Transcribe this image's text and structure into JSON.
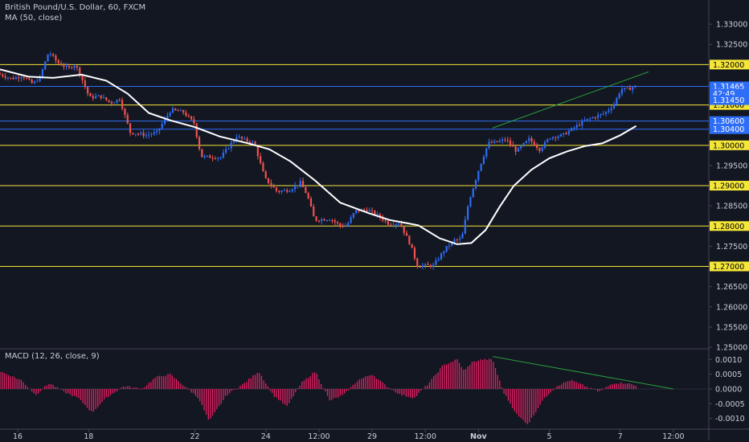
{
  "header": {
    "title": "British Pound/U.S. Dollar, 60, FXCM",
    "ma_label": "MA (50, close)"
  },
  "macd_label": "MACD (12, 26, close, 9)",
  "chart_data": [
    {
      "type": "candlestick",
      "title": "British Pound/U.S. Dollar, 60, FXCM",
      "ylim": [
        1.25,
        1.335
      ],
      "y_ticks": [
        "1.33000",
        "1.32500",
        "1.32000",
        "1.31500",
        "1.31000",
        "1.30500",
        "1.30000",
        "1.29500",
        "1.29000",
        "1.28500",
        "1.28000",
        "1.27500",
        "1.27000",
        "1.26500",
        "1.26000",
        "1.25500",
        "1.25000"
      ],
      "x_ticks": [
        {
          "label": "16",
          "t": 0.5
        },
        {
          "label": "18",
          "t": 2.5
        },
        {
          "label": "22",
          "t": 5.5
        },
        {
          "label": "24",
          "t": 7.5
        },
        {
          "label": "12:00",
          "t": 9.0
        },
        {
          "label": "29",
          "t": 10.5
        },
        {
          "label": "12:00",
          "t": 12.0
        },
        {
          "label": "Nov",
          "t": 13.5
        },
        {
          "label": "5",
          "t": 15.5
        },
        {
          "label": "7",
          "t": 17.5
        },
        {
          "label": "12:00",
          "t": 19.0
        }
      ],
      "price_path": [
        [
          0,
          1.3178
        ],
        [
          0.4,
          1.3165
        ],
        [
          0.7,
          1.3172
        ],
        [
          1.0,
          1.3152
        ],
        [
          1.2,
          1.3168
        ],
        [
          1.45,
          1.3232
        ],
        [
          1.7,
          1.3205
        ],
        [
          2.0,
          1.319
        ],
        [
          2.2,
          1.32
        ],
        [
          2.35,
          1.3172
        ],
        [
          2.6,
          1.3118
        ],
        [
          2.9,
          1.3122
        ],
        [
          3.2,
          1.3105
        ],
        [
          3.45,
          1.3115
        ],
        [
          3.75,
          1.3032
        ],
        [
          4.2,
          1.3025
        ],
        [
          4.5,
          1.3032
        ],
        [
          4.9,
          1.3088
        ],
        [
          5.25,
          1.3082
        ],
        [
          5.55,
          1.3055
        ],
        [
          5.75,
          1.2972
        ],
        [
          6.3,
          1.297
        ],
        [
          6.75,
          1.3022
        ],
        [
          7.0,
          1.3012
        ],
        [
          7.25,
          1.3005
        ],
        [
          7.55,
          1.2918
        ],
        [
          7.9,
          1.2885
        ],
        [
          8.25,
          1.289
        ],
        [
          8.55,
          1.2908
        ],
        [
          8.75,
          1.2875
        ],
        [
          8.95,
          1.2815
        ],
        [
          9.4,
          1.2818
        ],
        [
          9.65,
          1.2802
        ],
        [
          9.85,
          1.28
        ],
        [
          10.1,
          1.2838
        ],
        [
          10.45,
          1.284
        ],
        [
          10.75,
          1.2825
        ],
        [
          11.05,
          1.2805
        ],
        [
          11.35,
          1.2808
        ],
        [
          11.65,
          1.2755
        ],
        [
          11.85,
          1.2702
        ],
        [
          12.3,
          1.2702
        ],
        [
          12.65,
          1.2745
        ],
        [
          12.9,
          1.2765
        ],
        [
          13.1,
          1.2768
        ],
        [
          13.3,
          1.286
        ],
        [
          13.6,
          1.2945
        ],
        [
          13.85,
          1.3005
        ],
        [
          14.1,
          1.3008
        ],
        [
          14.35,
          1.3015
        ],
        [
          14.65,
          1.2985
        ],
        [
          15.0,
          1.3015
        ],
        [
          15.3,
          1.299
        ],
        [
          15.6,
          1.302
        ],
        [
          15.95,
          1.3025
        ],
        [
          16.3,
          1.3045
        ],
        [
          16.6,
          1.3062
        ],
        [
          16.9,
          1.3072
        ],
        [
          17.15,
          1.308
        ],
        [
          17.4,
          1.3102
        ],
        [
          17.6,
          1.314
        ],
        [
          17.8,
          1.3138
        ],
        [
          17.95,
          1.3146
        ]
      ],
      "ma_50": [
        [
          0,
          1.3188
        ],
        [
          0.8,
          1.317
        ],
        [
          1.5,
          1.3167
        ],
        [
          2.3,
          1.3175
        ],
        [
          3.0,
          1.316
        ],
        [
          3.6,
          1.3128
        ],
        [
          4.2,
          1.308
        ],
        [
          4.8,
          1.3062
        ],
        [
          5.5,
          1.3045
        ],
        [
          6.2,
          1.3022
        ],
        [
          7.0,
          1.3005
        ],
        [
          7.6,
          1.299
        ],
        [
          8.2,
          1.296
        ],
        [
          8.9,
          1.2912
        ],
        [
          9.6,
          1.2858
        ],
        [
          10.4,
          1.2832
        ],
        [
          11.0,
          1.2815
        ],
        [
          11.8,
          1.2802
        ],
        [
          12.4,
          1.277
        ],
        [
          12.9,
          1.2755
        ],
        [
          13.3,
          1.2758
        ],
        [
          13.7,
          1.279
        ],
        [
          14.1,
          1.2848
        ],
        [
          14.5,
          1.29
        ],
        [
          15.0,
          1.294
        ],
        [
          15.5,
          1.2968
        ],
        [
          16.0,
          1.2985
        ],
        [
          16.5,
          1.2998
        ],
        [
          17.0,
          1.3005
        ],
        [
          17.5,
          1.3025
        ],
        [
          17.95,
          1.3048
        ]
      ],
      "horizontal_levels": [
        {
          "price": 1.32,
          "label": "1.32000",
          "color": "#f5e63a"
        },
        {
          "price": 1.3146,
          "label": "1.31465",
          "color": "#2e6df6"
        },
        {
          "price": 1.31,
          "label": "1.31000",
          "color": "#f5e63a"
        },
        {
          "price": 1.306,
          "label": "1.30600",
          "color": "#2e6df6"
        },
        {
          "price": 1.304,
          "label": "1.30400",
          "color": "#2e6df6"
        },
        {
          "price": 1.3,
          "label": "1.30000",
          "color": "#f5e63a"
        },
        {
          "price": 1.29,
          "label": "1.29000",
          "color": "#f5e63a"
        },
        {
          "price": 1.28,
          "label": "1.28000",
          "color": "#f5e63a"
        },
        {
          "price": 1.27,
          "label": "1.27000",
          "color": "#f5e63a"
        }
      ],
      "price_badges": [
        {
          "label": "42:49",
          "price": 1.3128,
          "color": "#2e6df6"
        },
        {
          "label": "1.31450",
          "price": 1.3112,
          "color": "#2e6df6"
        }
      ],
      "trendline": {
        "from": [
          13.9,
          1.3043
        ],
        "to": [
          18.3,
          1.3182
        ],
        "color": "#2a9d3a"
      },
      "colors": {
        "up": "#2e6df6",
        "down": "#ef5350",
        "ma": "#ffffff",
        "grid": "#2a2e39",
        "text": "#c8ccd6"
      }
    },
    {
      "type": "bar",
      "title": "MACD (12, 26, close, 9)",
      "ylim": [
        -0.0012,
        0.0012
      ],
      "y_ticks": [
        "0.0010",
        "0.0005",
        "0.0000",
        "-0.0005",
        "-0.0010"
      ],
      "histogram_profile": [
        [
          0,
          0.0006
        ],
        [
          0.6,
          0.0003
        ],
        [
          1.0,
          -0.0002
        ],
        [
          1.4,
          0.0002
        ],
        [
          1.8,
          -0.0001
        ],
        [
          2.2,
          -0.0003
        ],
        [
          2.6,
          -0.0008
        ],
        [
          3.0,
          -0.0003
        ],
        [
          3.5,
          0.0001
        ],
        [
          4.0,
          0.0
        ],
        [
          4.4,
          0.0004
        ],
        [
          4.8,
          0.0005
        ],
        [
          5.2,
          0.0001
        ],
        [
          5.6,
          -0.0003
        ],
        [
          5.9,
          -0.0011
        ],
        [
          6.4,
          -0.0002
        ],
        [
          6.9,
          0.0002
        ],
        [
          7.3,
          0.0006
        ],
        [
          7.7,
          -0.0002
        ],
        [
          8.1,
          -0.0006
        ],
        [
          8.5,
          0.0002
        ],
        [
          8.9,
          0.0006
        ],
        [
          9.3,
          -0.0004
        ],
        [
          9.7,
          -0.0002
        ],
        [
          10.1,
          0.0003
        ],
        [
          10.5,
          0.0005
        ],
        [
          10.9,
          0.0001
        ],
        [
          11.3,
          -0.0002
        ],
        [
          11.7,
          -0.0003
        ],
        [
          12.1,
          0.0002
        ],
        [
          12.5,
          0.0008
        ],
        [
          12.9,
          0.001
        ],
        [
          13.1,
          0.0006
        ],
        [
          13.3,
          0.0009
        ],
        [
          13.6,
          0.001
        ],
        [
          13.9,
          0.001
        ],
        [
          14.2,
          -0.0001
        ],
        [
          14.6,
          -0.0009
        ],
        [
          14.9,
          -0.0012
        ],
        [
          15.3,
          -0.0004
        ],
        [
          15.7,
          0.0001
        ],
        [
          16.1,
          0.0003
        ],
        [
          16.5,
          0.0001
        ],
        [
          16.9,
          -0.0001
        ],
        [
          17.3,
          0.0002
        ],
        [
          17.7,
          0.0002
        ],
        [
          17.95,
          0.0001
        ]
      ],
      "trendline": {
        "from": [
          13.9,
          0.0011
        ],
        "to": [
          19.0,
          0.0
        ],
        "color": "#2a9d3a"
      },
      "colors": {
        "bar": "#e91e63"
      }
    }
  ]
}
